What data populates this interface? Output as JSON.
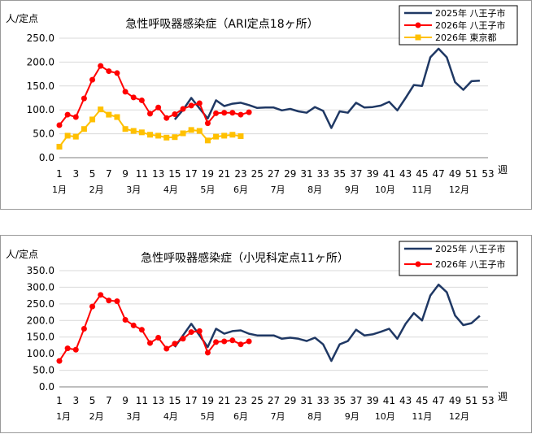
{
  "chart_data": [
    {
      "type": "line",
      "title": "急性呼吸器感染症（ARI定点18ヶ所）",
      "ylabel": "人/定点",
      "xlabel": "週",
      "ylim": [
        0,
        250
      ],
      "yticks": [
        "0.0",
        "50.0",
        "100.0",
        "150.0",
        "200.0",
        "250.0"
      ],
      "x_ticks": [
        1,
        3,
        5,
        7,
        9,
        11,
        13,
        15,
        17,
        19,
        21,
        23,
        25,
        27,
        29,
        31,
        33,
        35,
        37,
        39,
        41,
        43,
        45,
        47,
        49,
        51,
        53
      ],
      "months": [
        {
          "label": "1月",
          "week": 1
        },
        {
          "label": "2月",
          "week": 5.5
        },
        {
          "label": "3月",
          "week": 10
        },
        {
          "label": "4月",
          "week": 14.5
        },
        {
          "label": "5月",
          "week": 19
        },
        {
          "label": "6月",
          "week": 23
        },
        {
          "label": "7月",
          "week": 27.5
        },
        {
          "label": "8月",
          "week": 32
        },
        {
          "label": "9月",
          "week": 36.5
        },
        {
          "label": "10月",
          "week": 40.5
        },
        {
          "label": "11月",
          "week": 45
        },
        {
          "label": "12月",
          "week": 49.5
        }
      ],
      "grid": true,
      "legend_position": "top-right",
      "series": [
        {
          "name": "2025年 八王子市",
          "color": "#1f3864",
          "marker": "none",
          "x": [
            15,
            16,
            17,
            18,
            19,
            20,
            21,
            22,
            23,
            24,
            25,
            26,
            27,
            28,
            29,
            30,
            31,
            32,
            33,
            34,
            35,
            36,
            37,
            38,
            39,
            40,
            41,
            42,
            43,
            44,
            45,
            46,
            47,
            48,
            49,
            50,
            51,
            52
          ],
          "values": [
            80,
            100,
            125,
            103,
            82,
            120,
            108,
            113,
            115,
            110,
            104,
            105,
            105,
            99,
            102,
            97,
            94,
            106,
            98,
            62,
            97,
            94,
            115,
            105,
            106,
            109,
            117,
            99,
            125,
            152,
            150,
            210,
            228,
            210,
            158,
            142,
            160,
            161
          ]
        },
        {
          "name": "2026年 八王子市",
          "color": "#ff0000",
          "marker": "circle",
          "x": [
            1,
            2,
            3,
            4,
            5,
            6,
            7,
            8,
            9,
            10,
            11,
            12,
            13,
            14,
            15,
            16,
            17,
            18,
            19,
            20,
            21,
            22,
            23,
            24
          ],
          "values": [
            68,
            90,
            85,
            124,
            163,
            192,
            181,
            177,
            138,
            126,
            120,
            92,
            105,
            83,
            91,
            102,
            109,
            114,
            72,
            93,
            94,
            94,
            90,
            95
          ]
        },
        {
          "name": "2026年 東京都",
          "color": "#ffc000",
          "marker": "square",
          "x": [
            1,
            2,
            3,
            4,
            5,
            6,
            7,
            8,
            9,
            10,
            11,
            12,
            13,
            14,
            15,
            16,
            17,
            18,
            19,
            20,
            21,
            22,
            23
          ],
          "values": [
            23,
            46,
            44,
            60,
            80,
            101,
            90,
            85,
            60,
            56,
            53,
            48,
            46,
            42,
            43,
            51,
            58,
            56,
            36,
            44,
            46,
            48,
            45
          ]
        }
      ]
    },
    {
      "type": "line",
      "title": "急性呼吸器感染症（小児科定点11ヶ所）",
      "ylabel": "人/定点",
      "xlabel": "週",
      "ylim": [
        0,
        350
      ],
      "yticks": [
        "0.0",
        "50.0",
        "100.0",
        "150.0",
        "200.0",
        "250.0",
        "300.0",
        "350.0"
      ],
      "x_ticks": [
        1,
        3,
        5,
        7,
        9,
        11,
        13,
        15,
        17,
        19,
        21,
        23,
        25,
        27,
        29,
        31,
        33,
        35,
        37,
        39,
        41,
        43,
        45,
        47,
        49,
        51,
        53
      ],
      "months": [
        {
          "label": "1月",
          "week": 1.5
        },
        {
          "label": "2月",
          "week": 5.5
        },
        {
          "label": "3月",
          "week": 10
        },
        {
          "label": "4月",
          "week": 14.5
        },
        {
          "label": "5月",
          "week": 19
        },
        {
          "label": "6月",
          "week": 23
        },
        {
          "label": "7月",
          "week": 27.5
        },
        {
          "label": "8月",
          "week": 32
        },
        {
          "label": "9月",
          "week": 36.5
        },
        {
          "label": "10月",
          "week": 40.5
        },
        {
          "label": "11月",
          "week": 45
        },
        {
          "label": "12月",
          "week": 49.5
        }
      ],
      "grid": true,
      "legend_position": "top-right",
      "series": [
        {
          "name": "2025年 八王子市",
          "color": "#1f3864",
          "marker": "none",
          "x": [
            15,
            16,
            17,
            18,
            19,
            20,
            21,
            22,
            23,
            24,
            25,
            26,
            27,
            28,
            29,
            30,
            31,
            32,
            33,
            34,
            35,
            36,
            37,
            38,
            39,
            40,
            41,
            42,
            43,
            44,
            45,
            46,
            47,
            48,
            49,
            50,
            51,
            52
          ],
          "values": [
            120,
            155,
            190,
            155,
            120,
            175,
            160,
            168,
            170,
            160,
            155,
            155,
            155,
            145,
            148,
            145,
            138,
            148,
            128,
            78,
            128,
            138,
            172,
            155,
            158,
            166,
            175,
            145,
            190,
            222,
            200,
            275,
            308,
            285,
            215,
            186,
            192,
            214
          ]
        },
        {
          "name": "2026年 八王子市",
          "color": "#ff0000",
          "marker": "circle",
          "x": [
            1,
            2,
            3,
            4,
            5,
            6,
            7,
            8,
            9,
            10,
            11,
            12,
            13,
            14,
            15,
            16,
            17,
            18,
            19,
            20,
            21,
            22,
            23,
            24
          ],
          "values": [
            78,
            116,
            112,
            175,
            242,
            277,
            260,
            258,
            202,
            185,
            172,
            132,
            148,
            115,
            130,
            145,
            165,
            168,
            103,
            135,
            137,
            140,
            128,
            137
          ]
        }
      ]
    }
  ]
}
